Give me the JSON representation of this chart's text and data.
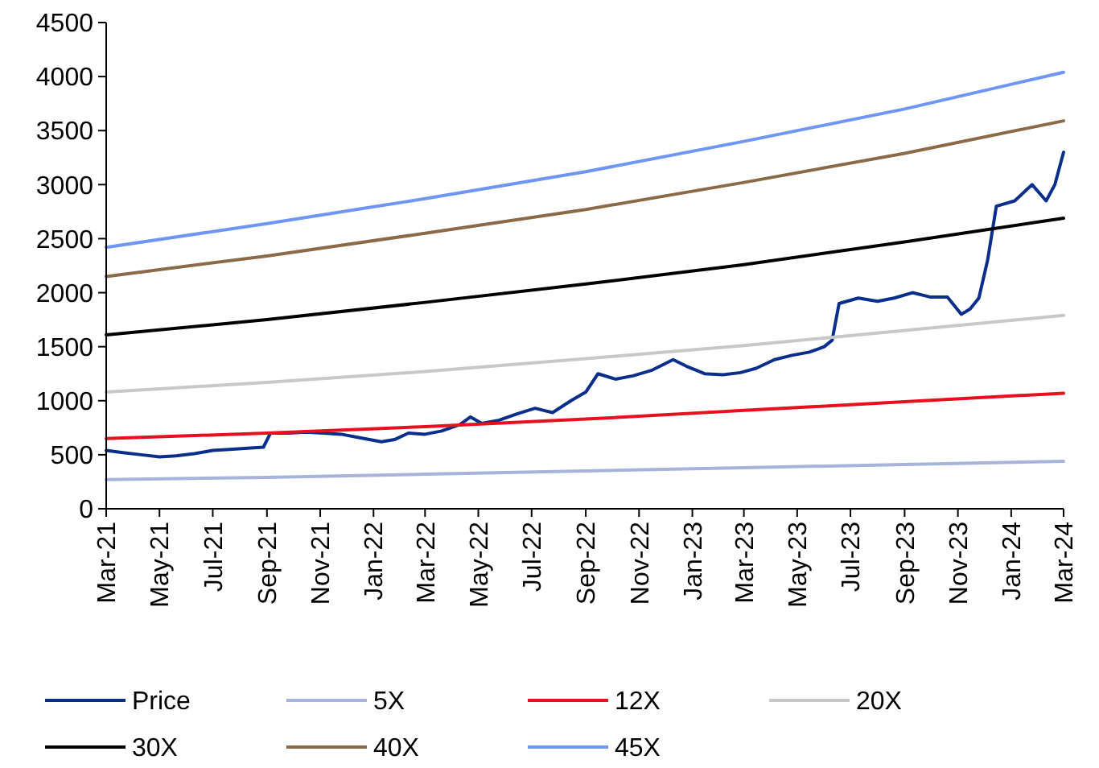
{
  "chart_data": {
    "type": "line",
    "xlim": [
      "2021-03",
      "2024-03"
    ],
    "ylim": [
      0,
      4500
    ],
    "yticks": [
      0,
      500,
      1000,
      1500,
      2000,
      2500,
      3000,
      3500,
      4000,
      4500
    ],
    "xticks": [
      {
        "value": "2021-03",
        "label": "Mar-21"
      },
      {
        "value": "2021-05",
        "label": "May-21"
      },
      {
        "value": "2021-07",
        "label": "Jul-21"
      },
      {
        "value": "2021-09",
        "label": "Sep-21"
      },
      {
        "value": "2021-11",
        "label": "Nov-21"
      },
      {
        "value": "2022-01",
        "label": "Jan-22"
      },
      {
        "value": "2022-03",
        "label": "Mar-22"
      },
      {
        "value": "2022-05",
        "label": "May-22"
      },
      {
        "value": "2022-07",
        "label": "Jul-22"
      },
      {
        "value": "2022-09",
        "label": "Sep-22"
      },
      {
        "value": "2022-11",
        "label": "Nov-22"
      },
      {
        "value": "2023-01",
        "label": "Jan-23"
      },
      {
        "value": "2023-03",
        "label": "Mar-23"
      },
      {
        "value": "2023-05",
        "label": "May-23"
      },
      {
        "value": "2023-07",
        "label": "Jul-23"
      },
      {
        "value": "2023-09",
        "label": "Sep-23"
      },
      {
        "value": "2023-11",
        "label": "Nov-23"
      },
      {
        "value": "2024-01",
        "label": "Jan-24"
      },
      {
        "value": "2024-03",
        "label": "Mar-24"
      }
    ],
    "legend": "bottom",
    "grid": false,
    "marker": "none",
    "line_style": "solid",
    "series": [
      {
        "name": "Price",
        "color": "#0a2e8c",
        "x": [
          "2021-03-01",
          "2021-03-20",
          "2021-04-10",
          "2021-05-01",
          "2021-05-20",
          "2021-06-10",
          "2021-07-01",
          "2021-07-20",
          "2021-08-10",
          "2021-08-28",
          "2021-09-05",
          "2021-09-25",
          "2021-10-15",
          "2021-11-05",
          "2021-11-25",
          "2021-12-15",
          "2022-01-10",
          "2022-01-25",
          "2022-02-10",
          "2022-03-01",
          "2022-03-20",
          "2022-04-10",
          "2022-04-22",
          "2022-05-05",
          "2022-05-25",
          "2022-06-15",
          "2022-07-05",
          "2022-07-25",
          "2022-08-15",
          "2022-09-01",
          "2022-09-15",
          "2022-10-05",
          "2022-10-25",
          "2022-11-15",
          "2022-12-10",
          "2022-12-25",
          "2023-01-15",
          "2023-02-05",
          "2023-02-25",
          "2023-03-15",
          "2023-04-05",
          "2023-04-25",
          "2023-05-15",
          "2023-06-01",
          "2023-06-10",
          "2023-06-18",
          "2023-07-10",
          "2023-08-01",
          "2023-08-20",
          "2023-09-10",
          "2023-09-30",
          "2023-10-20",
          "2023-11-05",
          "2023-11-15",
          "2023-11-25",
          "2023-12-05",
          "2023-12-15",
          "2024-01-05",
          "2024-01-25",
          "2024-02-10",
          "2024-02-20",
          "2024-03-01"
        ],
        "values": [
          540,
          520,
          500,
          480,
          490,
          510,
          540,
          550,
          560,
          570,
          700,
          700,
          710,
          700,
          690,
          660,
          620,
          640,
          700,
          690,
          720,
          780,
          850,
          790,
          820,
          880,
          930,
          890,
          1000,
          1080,
          1250,
          1200,
          1230,
          1280,
          1380,
          1320,
          1250,
          1240,
          1260,
          1300,
          1380,
          1420,
          1450,
          1500,
          1560,
          1900,
          1950,
          1920,
          1950,
          2000,
          1960,
          1960,
          1800,
          1850,
          1950,
          2300,
          2800,
          2850,
          3000,
          2850,
          3000,
          3300
        ]
      },
      {
        "name": "5X",
        "color": "#a6b4dc",
        "x": [
          "2021-03",
          "2021-09",
          "2022-03",
          "2022-09",
          "2023-03",
          "2023-09",
          "2024-03"
        ],
        "values": [
          270,
          290,
          320,
          350,
          380,
          410,
          440
        ]
      },
      {
        "name": "12X",
        "color": "#e8101e",
        "x": [
          "2021-03",
          "2021-09",
          "2022-03",
          "2022-09",
          "2023-03",
          "2023-09",
          "2024-03"
        ],
        "values": [
          650,
          700,
          760,
          830,
          910,
          990,
          1070
        ]
      },
      {
        "name": "20X",
        "color": "#c8c8c8",
        "x": [
          "2021-03",
          "2021-09",
          "2022-03",
          "2022-09",
          "2023-03",
          "2023-09",
          "2024-03"
        ],
        "values": [
          1080,
          1170,
          1270,
          1390,
          1510,
          1650,
          1790
        ]
      },
      {
        "name": "30X",
        "color": "#000000",
        "x": [
          "2021-03",
          "2021-09",
          "2022-03",
          "2022-09",
          "2023-03",
          "2023-09",
          "2024-03"
        ],
        "values": [
          1610,
          1750,
          1910,
          2080,
          2260,
          2470,
          2690
        ]
      },
      {
        "name": "40X",
        "color": "#8b6a4a",
        "x": [
          "2021-03",
          "2021-09",
          "2022-03",
          "2022-09",
          "2023-03",
          "2023-09",
          "2024-03"
        ],
        "values": [
          2150,
          2340,
          2550,
          2770,
          3020,
          3290,
          3590
        ]
      },
      {
        "name": "45X",
        "color": "#6f96f4",
        "x": [
          "2021-03",
          "2021-09",
          "2022-03",
          "2022-09",
          "2023-03",
          "2023-09",
          "2024-03"
        ],
        "values": [
          2420,
          2640,
          2870,
          3120,
          3400,
          3700,
          4040
        ]
      }
    ]
  }
}
